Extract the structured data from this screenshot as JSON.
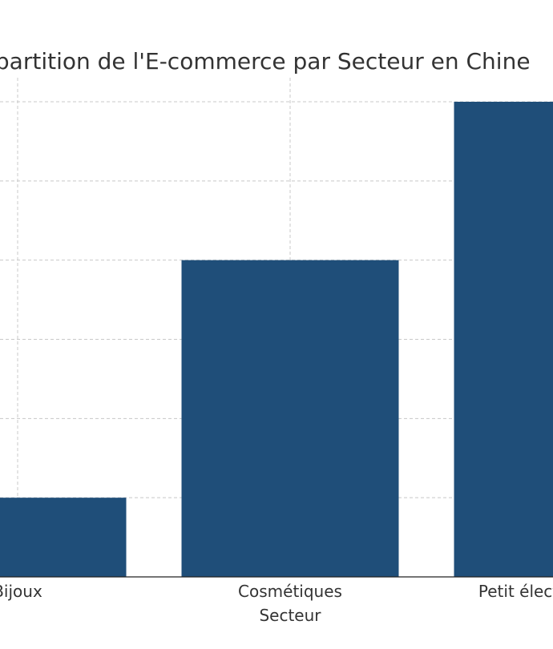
{
  "chart_data": {
    "type": "bar",
    "title": "Répartition de l'E-commerce par Secteur en Chine",
    "xlabel": "Secteur",
    "ylabel": "",
    "categories": [
      "Bijoux",
      "Cosmétiques",
      "Petit électroménager"
    ],
    "values": [
      5,
      20,
      30
    ],
    "ylim": [
      0,
      30
    ],
    "yticks": [
      0,
      5,
      10,
      15,
      20,
      25,
      30
    ],
    "grid": true,
    "bar_color": "#1f4e79"
  }
}
